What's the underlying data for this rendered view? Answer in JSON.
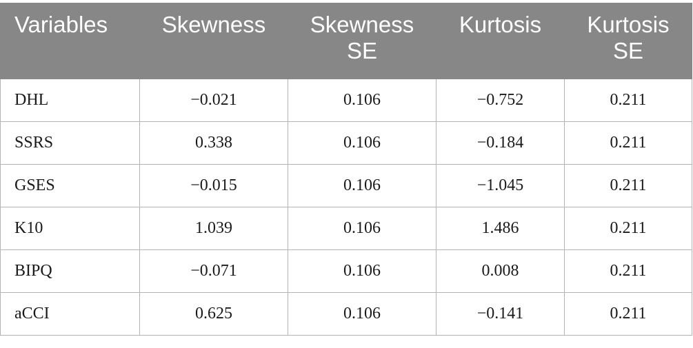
{
  "table": {
    "headers": [
      "Variables",
      "Skewness",
      "Skewness SE",
      "Kurtosis",
      "Kurtosis SE"
    ],
    "rows": [
      [
        "DHL",
        "−0.021",
        "0.106",
        "−0.752",
        "0.211"
      ],
      [
        "SSRS",
        "0.338",
        "0.106",
        "−0.184",
        "0.211"
      ],
      [
        "GSES",
        "−0.015",
        "0.106",
        "−1.045",
        "0.211"
      ],
      [
        "K10",
        "1.039",
        "0.106",
        "1.486",
        "0.211"
      ],
      [
        "BIPQ",
        "−0.071",
        "0.106",
        "0.008",
        "0.211"
      ],
      [
        "aCCI",
        "0.625",
        "0.106",
        "−0.141",
        "0.211"
      ]
    ]
  }
}
